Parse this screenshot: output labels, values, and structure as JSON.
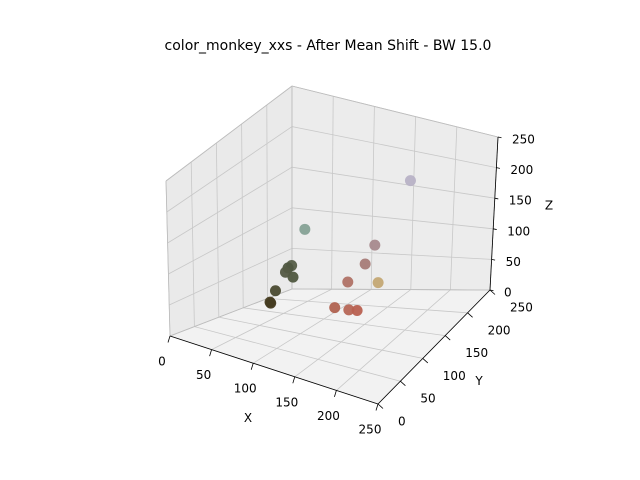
{
  "chart_data": {
    "type": "scatter",
    "projection": "3d",
    "title": "color_monkey_xxs - After Mean Shift - BW 15.0",
    "xlabel": "X",
    "ylabel": "Y",
    "zlabel": "Z",
    "xlim": [
      0,
      250
    ],
    "ylim": [
      0,
      250
    ],
    "zlim": [
      0,
      250
    ],
    "xticks": [
      "0",
      "50",
      "100",
      "150",
      "200",
      "250"
    ],
    "yticks": [
      "0",
      "50",
      "100",
      "150",
      "200",
      "250"
    ],
    "zticks": [
      "0",
      "50",
      "100",
      "150",
      "200",
      "250"
    ],
    "grid": true,
    "points": [
      {
        "x": 184,
        "y": 183,
        "z": 204,
        "color": "#b8b2c6"
      },
      {
        "x": 172,
        "y": 131,
        "z": 134,
        "color": "#a88a8e"
      },
      {
        "x": 168,
        "y": 118,
        "z": 112,
        "color": "#a87c78"
      },
      {
        "x": 154,
        "y": 106,
        "z": 88,
        "color": "#b07266"
      },
      {
        "x": 184,
        "y": 118,
        "z": 88,
        "color": "#c4a874"
      },
      {
        "x": 152,
        "y": 82,
        "z": 62,
        "color": "#b06250"
      },
      {
        "x": 168,
        "y": 84,
        "z": 62,
        "color": "#b66656"
      },
      {
        "x": 178,
        "y": 84,
        "z": 64,
        "color": "#b86050"
      },
      {
        "x": 86,
        "y": 133,
        "z": 134,
        "color": "#86a296"
      },
      {
        "x": 78,
        "y": 112,
        "z": 86,
        "color": "#4e5640"
      },
      {
        "x": 80,
        "y": 116,
        "z": 88,
        "color": "#565e48"
      },
      {
        "x": 76,
        "y": 110,
        "z": 80,
        "color": "#545a44"
      },
      {
        "x": 84,
        "y": 112,
        "z": 74,
        "color": "#505840"
      },
      {
        "x": 72,
        "y": 96,
        "z": 58,
        "color": "#4a4a30"
      },
      {
        "x": 72,
        "y": 86,
        "z": 44,
        "color": "#463c22"
      },
      {
        "x": 70,
        "y": 88,
        "z": 44,
        "color": "#4a4024"
      }
    ]
  }
}
